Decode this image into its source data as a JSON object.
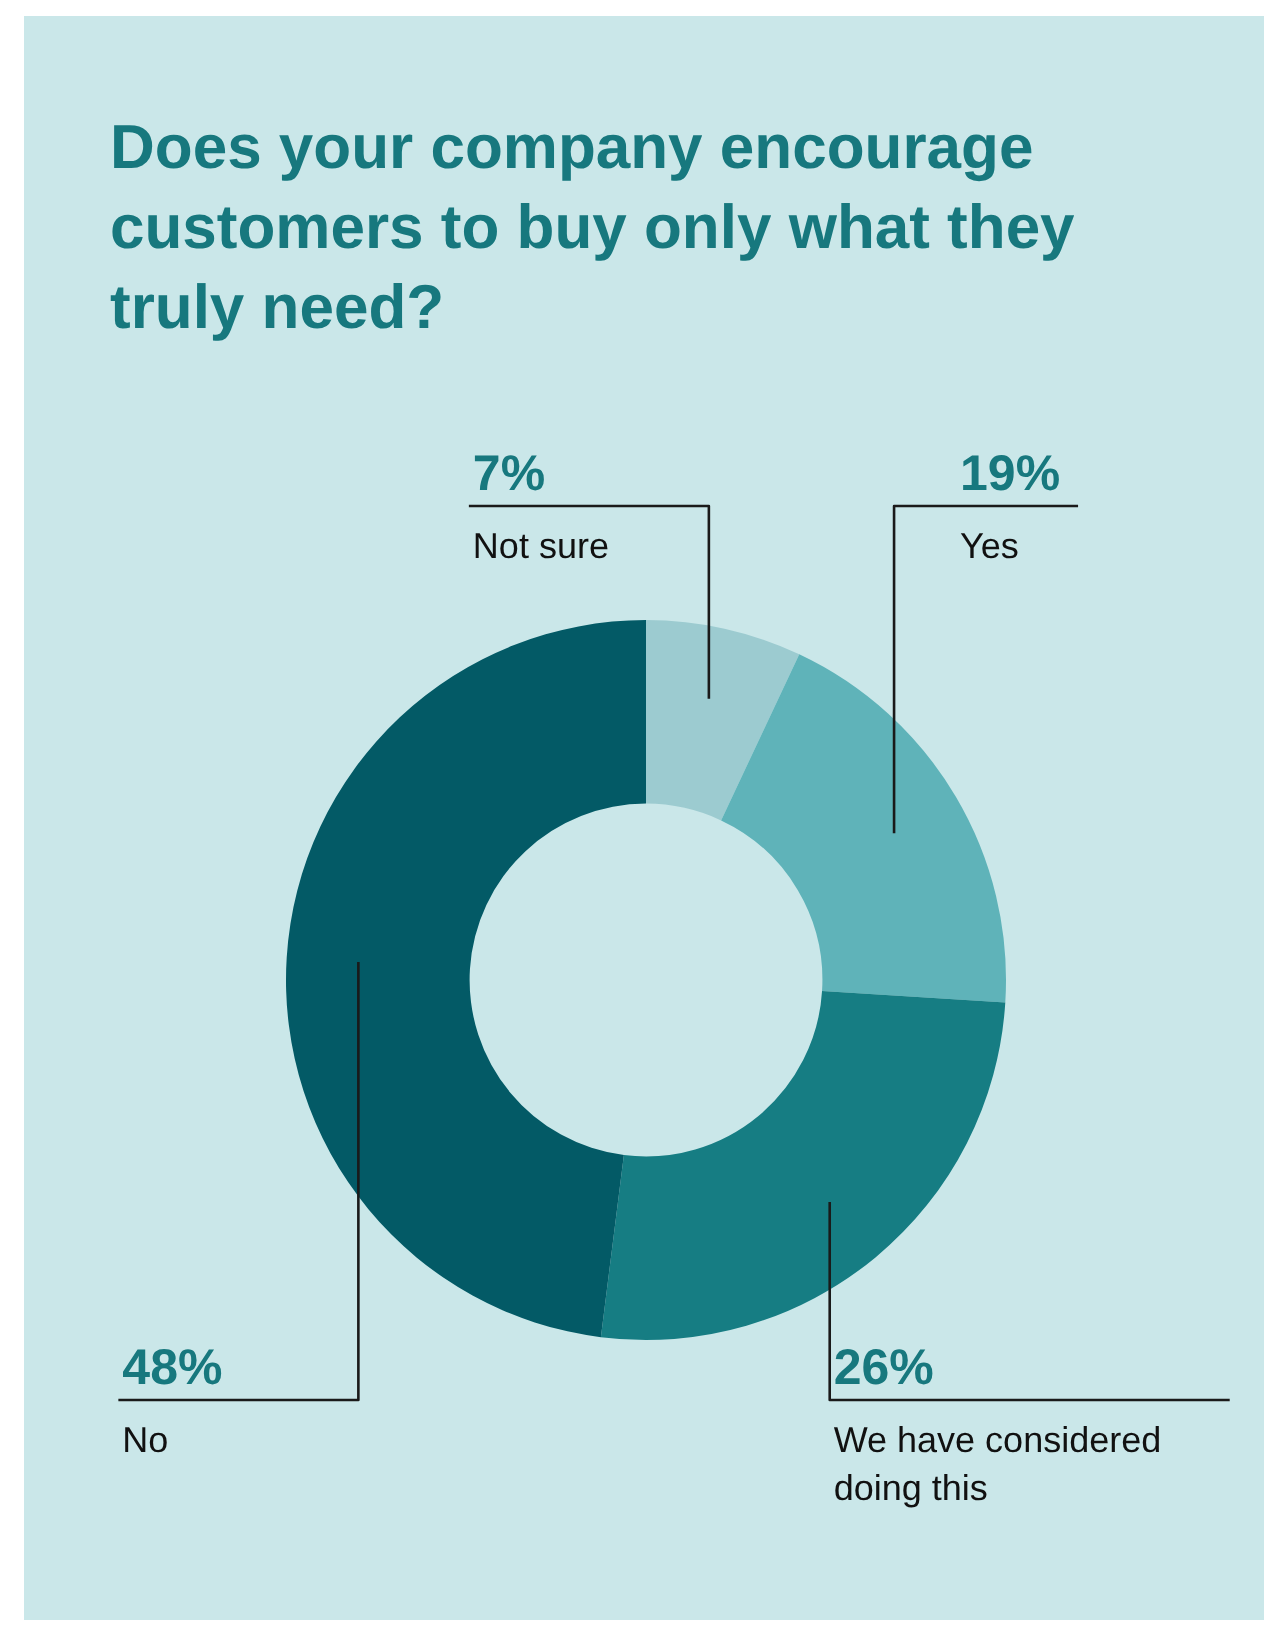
{
  "chart_data": {
    "type": "donut",
    "title": "Does your company encourage customers to buy only what they truly need?",
    "categories": [
      "Not sure",
      "Yes",
      "We have considered doing this",
      "No"
    ],
    "values": [
      7,
      19,
      26,
      48
    ],
    "colors": [
      "#9ccbd0",
      "#5fb3b9",
      "#167d83",
      "#035a66"
    ],
    "value_labels": [
      "7%",
      "19%",
      "26%",
      "48%"
    ]
  }
}
